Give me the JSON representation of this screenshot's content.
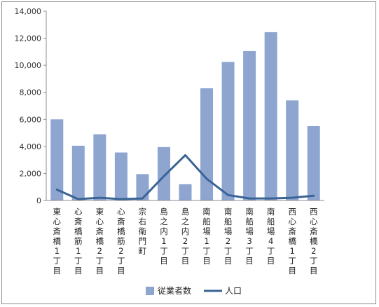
{
  "chart_data": {
    "type": "bar",
    "categories": [
      "東心斎橋1丁目",
      "心斎橋筋1丁目",
      "東心斎橋2丁目",
      "心斎橋筋2丁目",
      "宗右衛門町",
      "島之内1丁目",
      "島之内2丁目",
      "南船場1丁目",
      "南船場2丁目",
      "南船場3丁目",
      "南船場4丁目",
      "西心斎橋1丁目",
      "西心斎橋2丁目"
    ],
    "series": [
      {
        "name": "従業者数",
        "type": "bar",
        "color": "#8ea5d0",
        "values": [
          6000,
          4050,
          4900,
          3550,
          1950,
          3950,
          1200,
          8300,
          10250,
          11050,
          12450,
          7400,
          5500
        ]
      },
      {
        "name": "人口",
        "type": "line",
        "color": "#3a6496",
        "values": [
          800,
          100,
          200,
          100,
          150,
          1800,
          3350,
          1600,
          400,
          150,
          150,
          200,
          350
        ]
      }
    ],
    "y_ticks": [
      "0",
      "2,000",
      "4,000",
      "6,000",
      "8,000",
      "10,000",
      "12,000",
      "14,000"
    ],
    "ylim": [
      0,
      14000
    ],
    "grid": false,
    "legend_position": "bottom"
  }
}
